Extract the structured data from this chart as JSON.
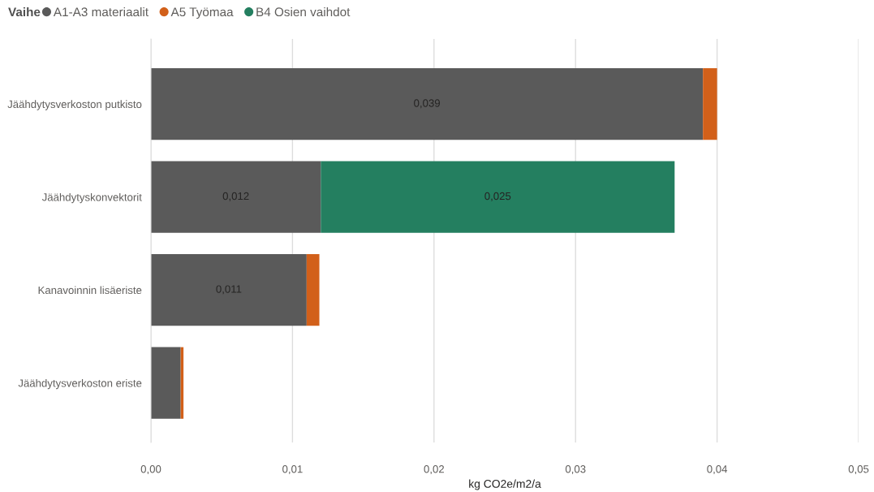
{
  "chart_data": {
    "type": "bar",
    "orientation": "horizontal",
    "stacked": true,
    "legend_title": "Vaihe",
    "xlabel": "kg CO2e/m2/a",
    "categories": [
      "Jäähdytysverkoston putkisto",
      "Jäähdytyskonvektorit",
      "Kanavoinnin lisäeriste",
      "Jäähdytysverkoston eriste"
    ],
    "series": [
      {
        "name": "A1-A3 materiaalit",
        "color": "#5a5a5a",
        "values": [
          0.039,
          0.012,
          0.011,
          0.0021
        ],
        "value_labels": [
          "0,039",
          "0,012",
          "0,011",
          null
        ]
      },
      {
        "name": "A5 Työmaa",
        "color": "#d2601a",
        "values": [
          0.001,
          null,
          0.0009,
          0.0002
        ]
      },
      {
        "name": "B4 Osien vaihdot",
        "color": "#247f60",
        "values": [
          null,
          0.025,
          null,
          null
        ],
        "value_labels": [
          null,
          "0,025",
          null,
          null
        ]
      }
    ],
    "xlim": [
      0,
      0.05
    ],
    "xticks": [
      {
        "value": 0,
        "label": "0,00"
      },
      {
        "value": 0.01,
        "label": "0,01"
      },
      {
        "value": 0.02,
        "label": "0,02"
      },
      {
        "value": 0.03,
        "label": "0,03"
      },
      {
        "value": 0.04,
        "label": "0,04"
      },
      {
        "value": 0.05,
        "label": "0,05"
      }
    ],
    "grid": "x",
    "legend": "top left"
  }
}
